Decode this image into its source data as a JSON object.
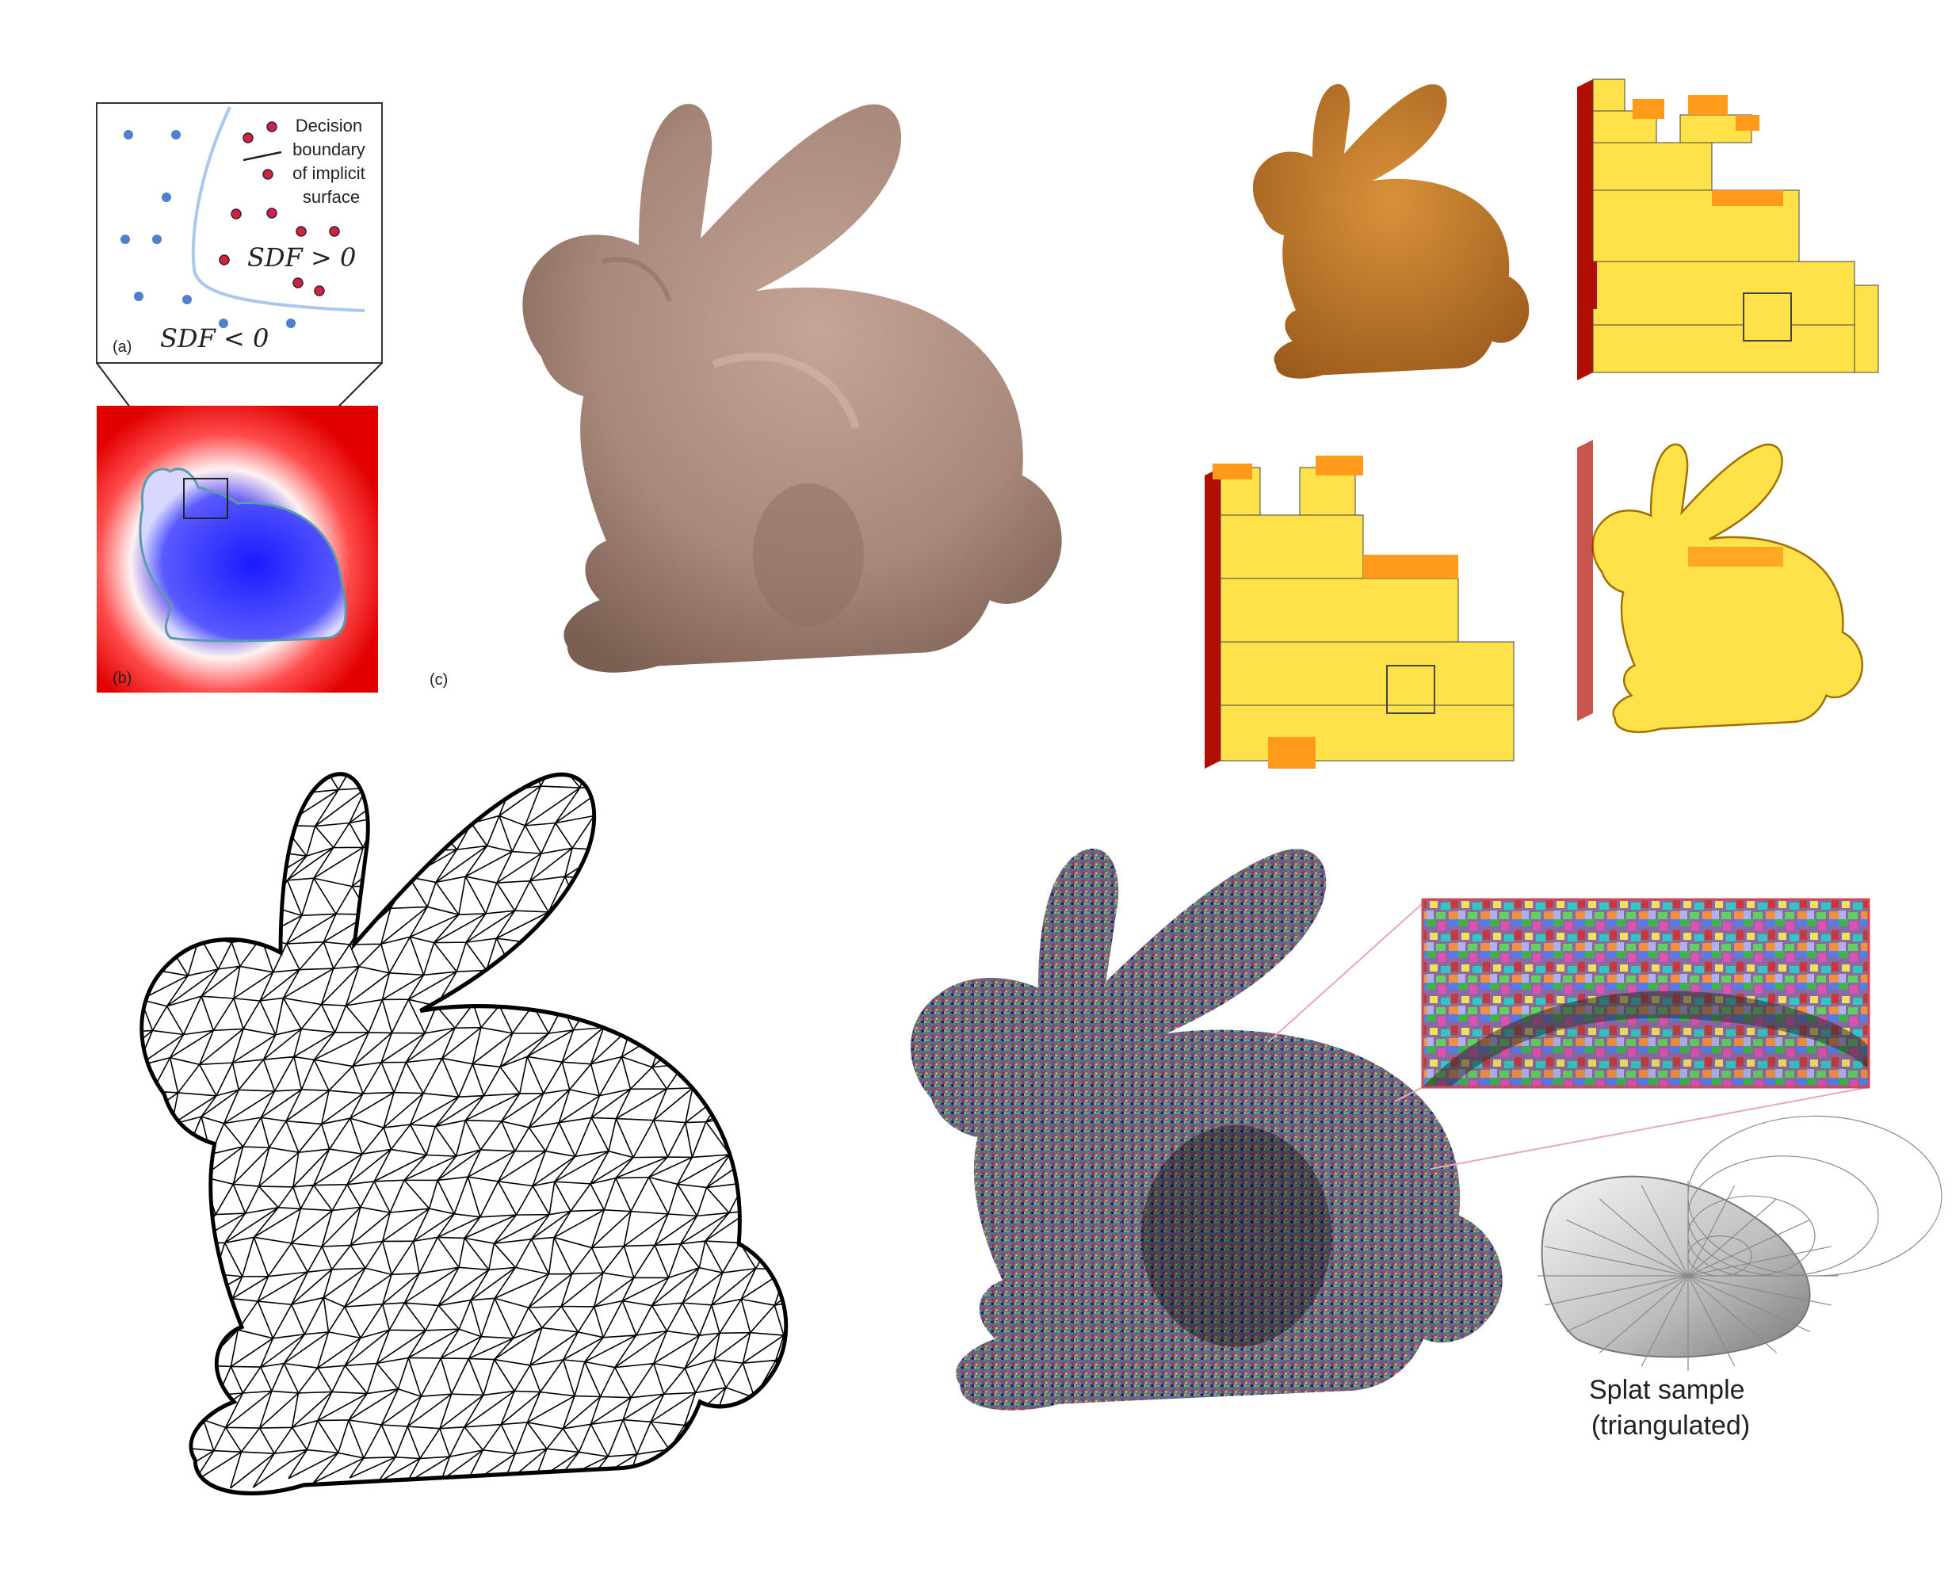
{
  "panel_a": {
    "tag": "(a)",
    "annotation_lines": [
      "Decision",
      "boundary",
      "of implicit",
      "surface"
    ],
    "sdf_positive": "SDF > 0",
    "sdf_negative": "SDF < 0",
    "colors": {
      "negative_point": "#4f7fcf",
      "positive_point": "#d0243a",
      "boundary": "#a9c8ea"
    }
  },
  "panel_b": {
    "tag": "(b)",
    "colors": {
      "outside": "#ff0000",
      "inside": "#2a2aff",
      "contour": "#5b9bb0"
    }
  },
  "panel_c": {
    "tag": "(c)",
    "colors": {
      "surface": "#a7887a"
    }
  },
  "voxel_panel": {
    "colors": {
      "face_light": "#ffe14a",
      "face_top": "#ff9a1a",
      "face_dark": "#b00e00",
      "mesh": "#c87a28"
    }
  },
  "wireframe_panel": {
    "colors": {
      "edge": "#000000"
    }
  },
  "splat_panel": {
    "caption_lines": [
      "Splat sample",
      "(triangulated)"
    ],
    "colors": {
      "callout_line": "#e8a8b4",
      "inset_border": "#cc4a5a"
    }
  }
}
